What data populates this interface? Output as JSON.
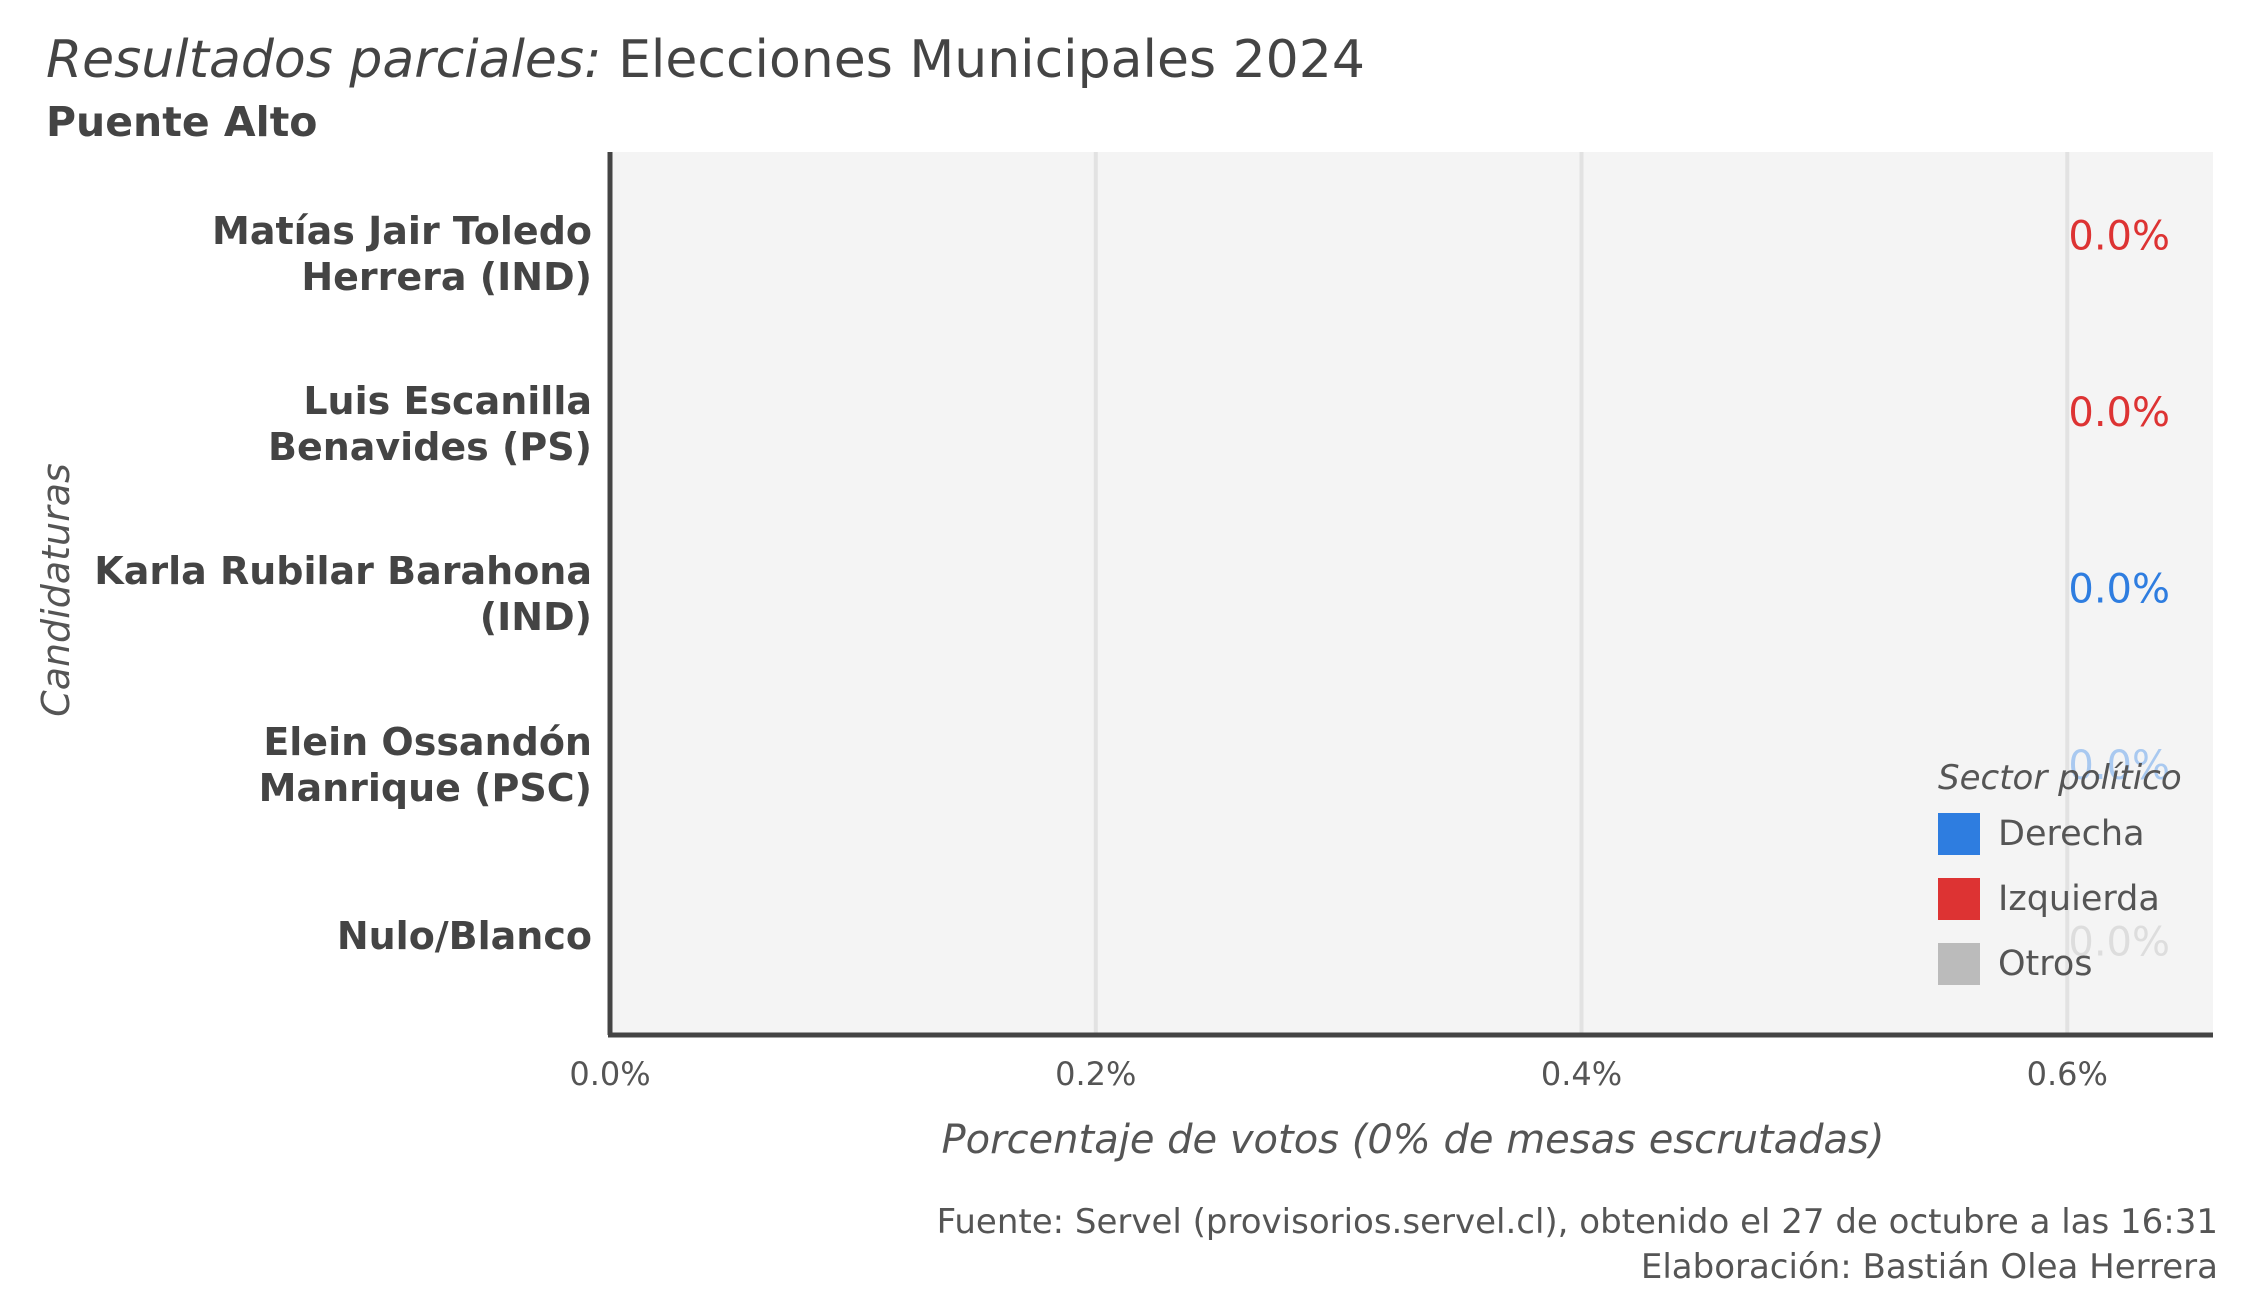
{
  "header": {
    "title_italic": "Resultados  parciales:",
    "title_rest": "Elecciones Municipales 2024",
    "subtitle": "Puente Alto"
  },
  "axis": {
    "ylabel": "Candidaturas",
    "xlabel": "Porcentaje de votos (0% de mesas escrutadas)"
  },
  "caption": {
    "line1": "Fuente: Servel (provisorios.servel.cl), obtenido el 27 de octubre a las 16:31",
    "line2": "Elaboración: Bastián Olea Herrera"
  },
  "legend": {
    "title": "Sector político",
    "items": [
      {
        "label": "Derecha",
        "color": "#2e7de0"
      },
      {
        "label": "Izquierda",
        "color": "#dd3333"
      },
      {
        "label": "Otros",
        "color": "#bbbbbb"
      }
    ]
  },
  "candidates": [
    {
      "line1": "Matías Jair Toledo",
      "line2": "Herrera (IND)"
    },
    {
      "line1": "Luis Escanilla",
      "line2": "Benavides (PS)"
    },
    {
      "line1": "Karla Rubilar Barahona",
      "line2": "(IND)"
    },
    {
      "line1": "Elein Ossandón",
      "line2": "Manrique (PSC)"
    },
    {
      "line1": "Nulo/Blanco",
      "line2": ""
    }
  ],
  "chart_data": {
    "type": "bar",
    "orientation": "horizontal",
    "title": "Resultados parciales: Elecciones Municipales 2024",
    "subtitle": "Puente Alto",
    "xlabel": "Porcentaje de votos (0% de mesas escrutadas)",
    "ylabel": "Candidaturas",
    "xlim": [
      0,
      0.66
    ],
    "x_ticks": [
      0,
      0.2,
      0.4,
      0.6
    ],
    "x_tick_labels": [
      "0.0%",
      "0.2%",
      "0.4%",
      "0.6%"
    ],
    "grid": true,
    "legend_position": "bottom-right",
    "categories": [
      "Matías Jair Toledo Herrera (IND)",
      "Luis Escanilla Benavides (PS)",
      "Karla Rubilar Barahona (IND)",
      "Elein Ossandón Manrique (PSC)",
      "Nulo/Blanco"
    ],
    "values": [
      0,
      0,
      0,
      0,
      0
    ],
    "value_labels": [
      "0.0%",
      "0.0%",
      "0.0%",
      "0.0%",
      "0.0%"
    ],
    "label_colors": [
      "#dd3333",
      "#dd3333",
      "#2e7de0",
      "#a9c9f0",
      "#dddddd"
    ],
    "sectors": [
      "Izquierda",
      "Izquierda",
      "Derecha",
      "Derecha",
      "Otros"
    ]
  }
}
